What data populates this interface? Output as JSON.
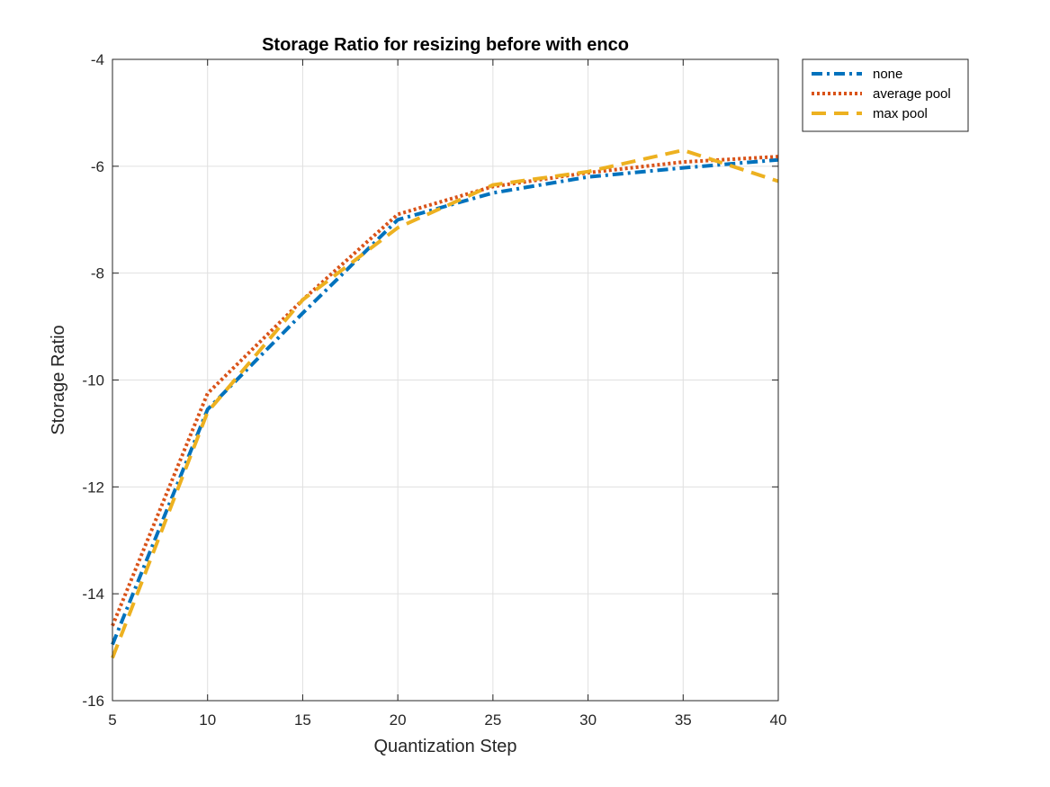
{
  "chart_data": {
    "type": "line",
    "title": "Storage Ratio for resizing before with enco",
    "xlabel": "Quantization Step",
    "ylabel": "Storage Ratio",
    "xlim": [
      5,
      40
    ],
    "ylim": [
      -16,
      -4
    ],
    "xticks": [
      5,
      10,
      15,
      20,
      25,
      30,
      35,
      40
    ],
    "yticks": [
      -16,
      -14,
      -12,
      -10,
      -8,
      -6,
      -4
    ],
    "grid": true,
    "legend_position": "outside top-right",
    "series": [
      {
        "name": "none",
        "color": "#0072BD",
        "dash": "dash-dot",
        "x": [
          5,
          10,
          15,
          20,
          25,
          30,
          35,
          40
        ],
        "y": [
          -14.95,
          -10.55,
          -8.75,
          -7.0,
          -6.5,
          -6.2,
          -6.03,
          -5.88
        ]
      },
      {
        "name": "average pool",
        "color": "#D95319",
        "dash": "dotted",
        "x": [
          5,
          10,
          15,
          20,
          25,
          30,
          35,
          40
        ],
        "y": [
          -14.6,
          -10.25,
          -8.5,
          -6.9,
          -6.38,
          -6.12,
          -5.92,
          -5.82
        ]
      },
      {
        "name": "max pool",
        "color": "#EDB120",
        "dash": "dashed",
        "x": [
          5,
          10,
          15,
          20,
          25,
          30,
          35,
          40
        ],
        "y": [
          -15.2,
          -10.6,
          -8.5,
          -7.15,
          -6.35,
          -6.1,
          -5.7,
          -6.28
        ]
      }
    ]
  }
}
